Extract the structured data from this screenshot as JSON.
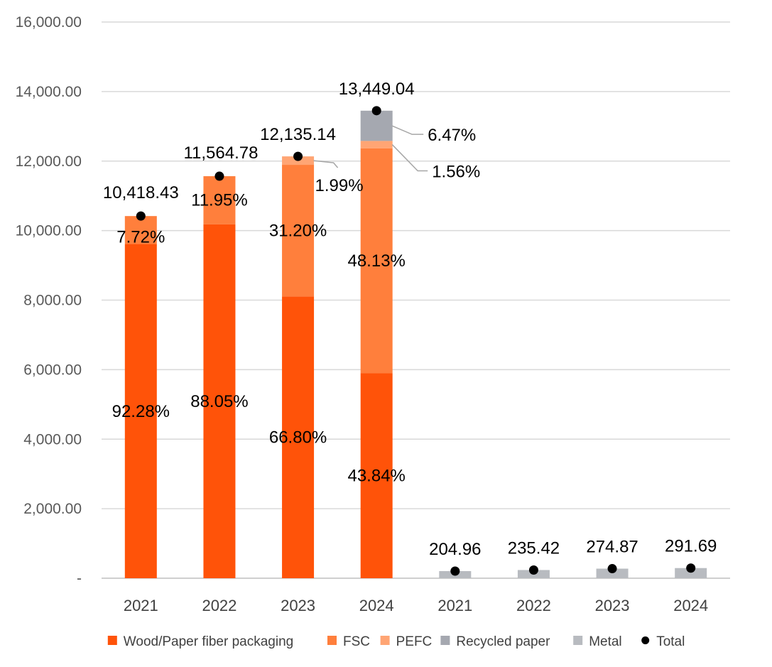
{
  "chart_data": {
    "type": "bar",
    "stacked": true,
    "categories": [
      "2021",
      "2022",
      "2023",
      "2024",
      "2021",
      "2022",
      "2023",
      "2024"
    ],
    "y_tick_labels": [
      "-",
      "2,000.00",
      "4,000.00",
      "6,000.00",
      "8,000.00",
      "10,000.00",
      "12,000.00",
      "14,000.00",
      "16,000.00"
    ],
    "ylim": [
      0,
      16000
    ],
    "grid": true,
    "legend_position": "bottom",
    "series": [
      {
        "name": "Wood/Paper fiber packaging",
        "color": "#ff5309",
        "values": [
          9613,
          10183,
          8106,
          5896,
          0,
          0,
          0,
          0
        ],
        "labels": [
          "92.28%",
          "88.05%",
          "66.80%",
          "43.84%",
          "",
          "",
          "",
          ""
        ]
      },
      {
        "name": "FSC",
        "color": "#ff7f3c",
        "values": [
          805,
          1382,
          3786,
          6473,
          0,
          0,
          0,
          0
        ],
        "labels": [
          "7.72%",
          "11.95%",
          "31.20%",
          "48.13%",
          "",
          "",
          "",
          ""
        ]
      },
      {
        "name": "PEFC",
        "color": "#ffa574",
        "values": [
          0,
          0,
          243,
          210,
          0,
          0,
          0,
          0
        ],
        "labels": [
          "",
          "",
          "1.99%",
          "1.56%",
          "",
          "",
          "",
          ""
        ]
      },
      {
        "name": "Recycled paper",
        "color": "#a5a8b0",
        "values": [
          0,
          0,
          0,
          870,
          0,
          0,
          0,
          0
        ],
        "labels": [
          "",
          "",
          "",
          "6.47%",
          "",
          "",
          "",
          ""
        ]
      },
      {
        "name": "Metal",
        "color": "#b8bbc0",
        "values": [
          0,
          0,
          0,
          0,
          204.96,
          235.42,
          274.87,
          291.69
        ],
        "labels": [
          "",
          "",
          "",
          "",
          "",
          "",
          "",
          ""
        ]
      }
    ],
    "total": {
      "name": "Total",
      "color": "#000000",
      "values": [
        10418.43,
        11564.78,
        12135.14,
        13449.04,
        204.96,
        235.42,
        274.87,
        291.69
      ],
      "labels": [
        "10,418.43",
        "11,564.78",
        "12,135.14",
        "13,449.04",
        "204.96",
        "235.42",
        "274.87",
        "291.69"
      ]
    }
  }
}
